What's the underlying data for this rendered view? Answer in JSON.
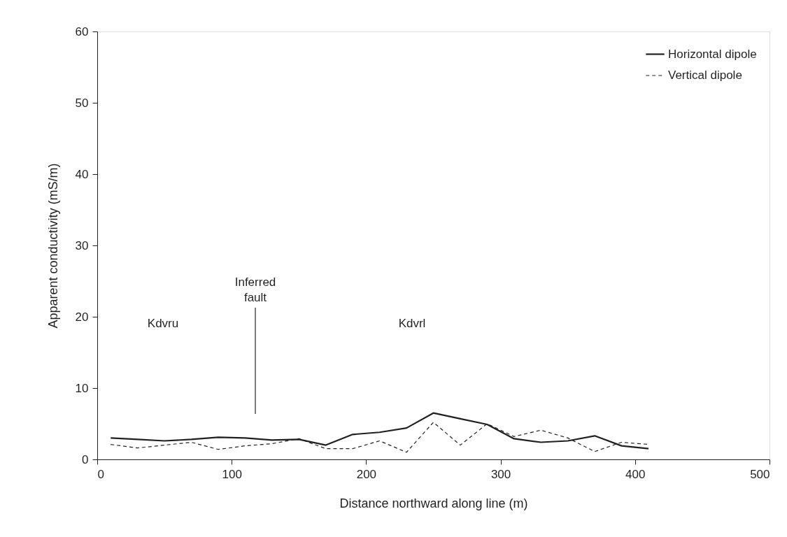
{
  "chart_data": {
    "type": "line",
    "xlabel": "Distance northward along line (m)",
    "ylabel": "Apparent conductivity (mS/m)",
    "x": [
      10,
      30,
      50,
      70,
      90,
      110,
      130,
      150,
      170,
      190,
      210,
      230,
      250,
      270,
      290,
      310,
      330,
      350,
      370,
      390,
      410
    ],
    "series": [
      {
        "name": "Horizontal dipole",
        "color": "#231f20",
        "line_style": "solid",
        "values": [
          3.0,
          2.8,
          2.6,
          2.8,
          3.1,
          3.0,
          2.7,
          2.8,
          2.0,
          3.5,
          3.8,
          4.4,
          6.5,
          5.7,
          4.9,
          2.9,
          2.4,
          2.6,
          3.3,
          1.9,
          1.5
        ]
      },
      {
        "name": "Vertical dipole",
        "color": "#231f20",
        "line_style": "dashed",
        "values": [
          2.1,
          1.6,
          2.0,
          2.4,
          1.4,
          1.9,
          2.2,
          2.9,
          1.5,
          1.5,
          2.6,
          1.0,
          5.2,
          2.0,
          5.0,
          3.2,
          4.1,
          3.0,
          1.1,
          2.4,
          2.1
        ]
      }
    ],
    "xlim": [
      0,
      500
    ],
    "xticks": [
      0,
      100,
      200,
      300,
      400,
      500
    ],
    "ylim": [
      0,
      60
    ],
    "yticks": [
      0,
      10,
      20,
      30,
      40,
      50,
      60
    ],
    "grid": false,
    "legend": "top right",
    "marker": "none",
    "annotations": [
      "Kdvru",
      "Inferred\nfault",
      "Kdvrl"
    ]
  }
}
